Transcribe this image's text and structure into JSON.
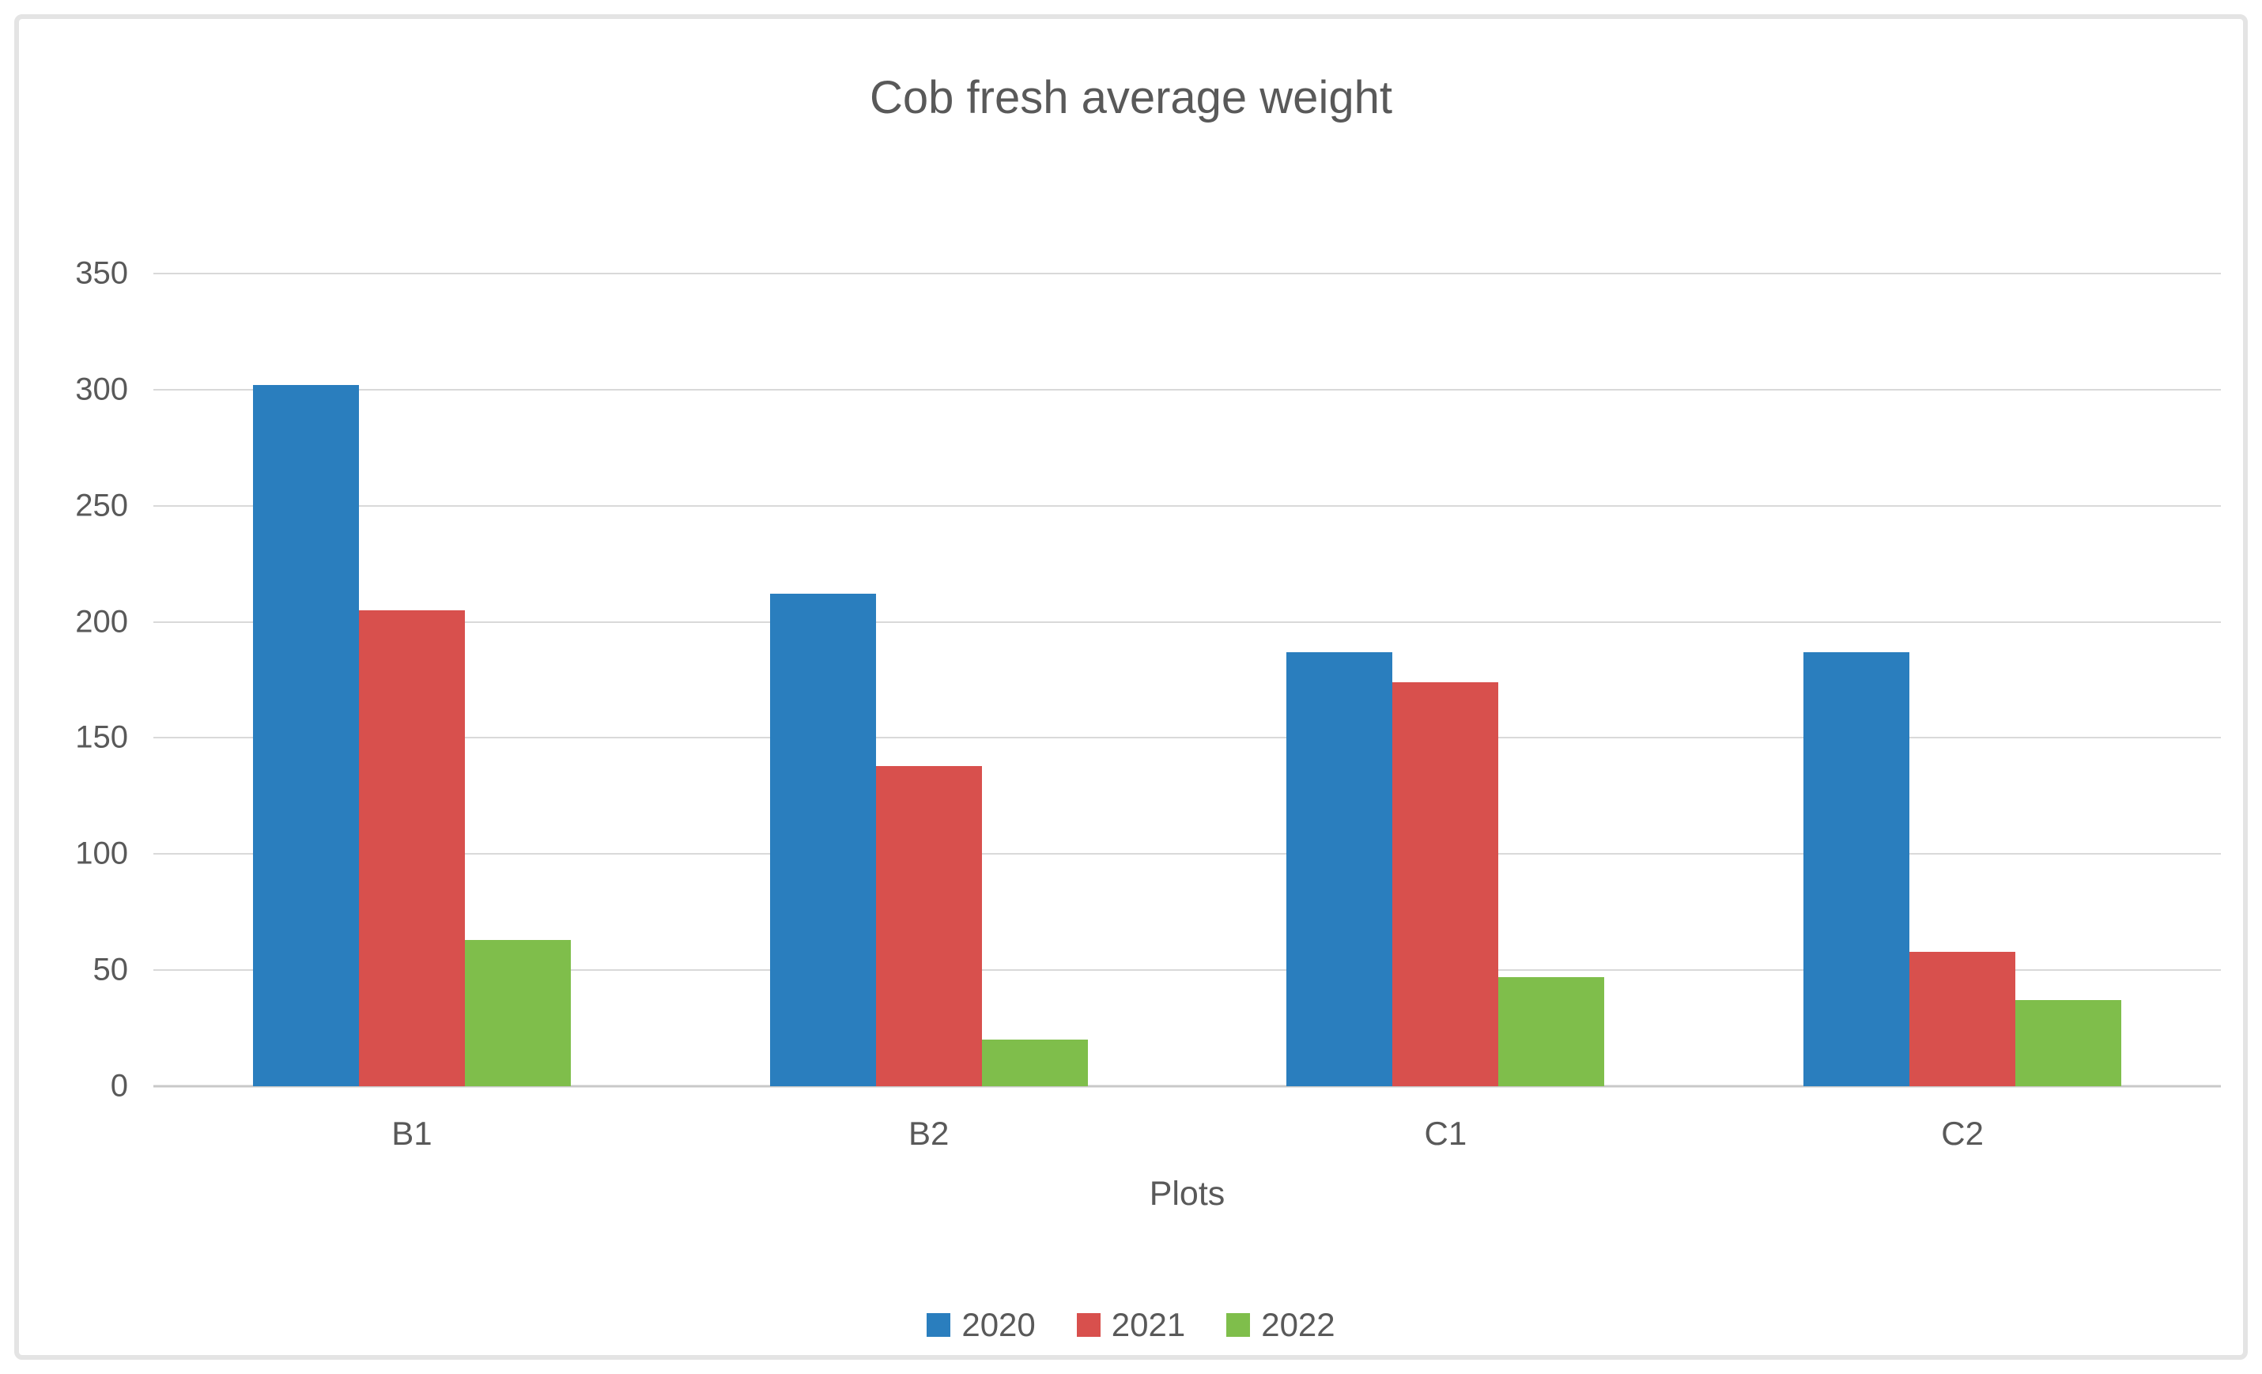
{
  "chart_data": {
    "type": "bar",
    "title": "Cob fresh average weight",
    "xlabel": "Plots",
    "ylabel": "",
    "categories": [
      "B1",
      "B2",
      "C1",
      "C2"
    ],
    "series": [
      {
        "name": "2020",
        "color": "#2A7EBE",
        "values": [
          302,
          212,
          187,
          187
        ]
      },
      {
        "name": "2021",
        "color": "#D8504D",
        "values": [
          205,
          138,
          174,
          58
        ]
      },
      {
        "name": "2022",
        "color": "#7FBE4B",
        "values": [
          63,
          20,
          47,
          37
        ]
      }
    ],
    "ylim": [
      0,
      350
    ],
    "y_ticks": [
      0,
      50,
      100,
      150,
      200,
      250,
      300,
      350
    ],
    "grid": true,
    "legend_position": "bottom"
  },
  "style": {
    "background": "#FFFFFF",
    "frame_border_color": "#E4E4E4",
    "grid_color": "#D9D9D9",
    "baseline_color": "#C9C9C9",
    "text_color": "#595959"
  }
}
